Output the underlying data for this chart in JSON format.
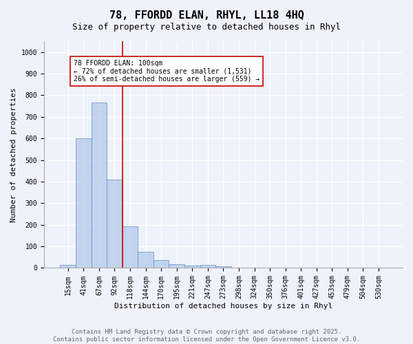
{
  "title": "78, FFORDD ELAN, RHYL, LL18 4HQ",
  "subtitle": "Size of property relative to detached houses in Rhyl",
  "xlabel": "Distribution of detached houses by size in Rhyl",
  "ylabel": "Number of detached properties",
  "categories": [
    "15sqm",
    "41sqm",
    "67sqm",
    "92sqm",
    "118sqm",
    "144sqm",
    "170sqm",
    "195sqm",
    "221sqm",
    "247sqm",
    "273sqm",
    "298sqm",
    "324sqm",
    "350sqm",
    "376sqm",
    "401sqm",
    "427sqm",
    "453sqm",
    "479sqm",
    "504sqm",
    "530sqm"
  ],
  "values": [
    13,
    601,
    767,
    411,
    193,
    75,
    37,
    18,
    10,
    13,
    8,
    3,
    0,
    0,
    0,
    0,
    0,
    0,
    0,
    0,
    0
  ],
  "bar_color": "#aec6e8",
  "bar_edge_color": "#5b8cc8",
  "bar_alpha": 0.7,
  "vline_color": "#cc0000",
  "annotation_text": "78 FFORDD ELAN: 100sqm\n← 72% of detached houses are smaller (1,531)\n26% of semi-detached houses are larger (559) →",
  "annotation_box_color": "#ffffff",
  "annotation_box_edge": "#cc0000",
  "ylim": [
    0,
    1050
  ],
  "yticks": [
    0,
    100,
    200,
    300,
    400,
    500,
    600,
    700,
    800,
    900,
    1000
  ],
  "footer": "Contains HM Land Registry data © Crown copyright and database right 2025.\nContains public sector information licensed under the Open Government Licence v3.0.",
  "bg_color": "#eef2fb",
  "grid_color": "#ffffff",
  "title_fontsize": 11,
  "subtitle_fontsize": 9,
  "axis_label_fontsize": 8,
  "tick_fontsize": 7,
  "footer_fontsize": 6.5,
  "annotation_fontsize": 7
}
